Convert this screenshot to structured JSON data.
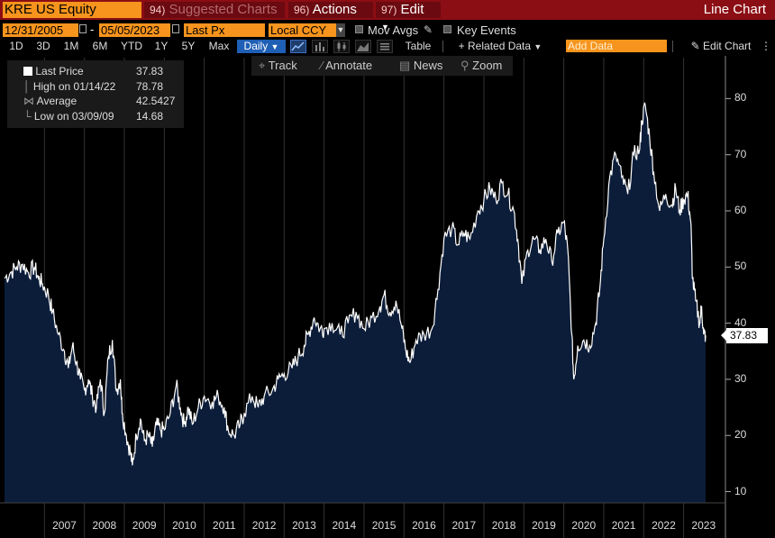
{
  "header": {
    "ticker": "KRE US Equity",
    "suggested_num": "94)",
    "suggested_label": "Suggested Charts",
    "actions_num": "96)",
    "actions_label": "Actions",
    "edit_num": "97)",
    "edit_label": "Edit",
    "chart_title": "Line Chart"
  },
  "controls": {
    "start_date": "12/31/2005",
    "end_date": "05/05/2023",
    "field": "Last Px",
    "currency": "Local CCY",
    "mov_avgs": "Mov Avgs",
    "key_events": "Key Events"
  },
  "ranges": [
    "1D",
    "3D",
    "1M",
    "6M",
    "YTD",
    "1Y",
    "5Y",
    "Max"
  ],
  "frequency": "Daily",
  "toolbar": {
    "table": "Table",
    "related_data": "+ Related Data",
    "add_data_placeholder": "Add Data",
    "edit_chart": "Edit Chart",
    "track": "Track",
    "annotate": "Annotate",
    "news": "News",
    "zoom": "Zoom"
  },
  "legend": {
    "last_label": "Last Price",
    "last_value": "37.83",
    "high_label": "High on 01/14/22",
    "high_value": "78.78",
    "avg_label": "Average",
    "avg_value": "42.5427",
    "low_label": "Low on 03/09/09",
    "low_value": "14.68"
  },
  "colors": {
    "area_fill": "#0c1d3a",
    "line": "#ffffff",
    "accent_orange": "#f7941d",
    "header_red": "#8b0e14"
  },
  "chart_data": {
    "type": "area",
    "x_ticks": [
      "2007",
      "2008",
      "2009",
      "2010",
      "2011",
      "2012",
      "2013",
      "2014",
      "2015",
      "2016",
      "2017",
      "2018",
      "2019",
      "2020",
      "2021",
      "2022",
      "2023"
    ],
    "y_ticks": [
      10,
      20,
      30,
      40,
      50,
      60,
      70,
      80
    ],
    "ylim": [
      8,
      86
    ],
    "xlim": [
      2006.0,
      2023.55
    ],
    "last_value_label": "37.83",
    "series": [
      {
        "name": "Last Price",
        "points": [
          [
            2006.0,
            48
          ],
          [
            2006.15,
            49
          ],
          [
            2006.3,
            50
          ],
          [
            2006.45,
            50.5
          ],
          [
            2006.6,
            49
          ],
          [
            2006.75,
            50
          ],
          [
            2006.85,
            48
          ],
          [
            2006.95,
            47
          ],
          [
            2007.1,
            45
          ],
          [
            2007.2,
            42
          ],
          [
            2007.35,
            38
          ],
          [
            2007.5,
            35
          ],
          [
            2007.6,
            32
          ],
          [
            2007.7,
            36
          ],
          [
            2007.8,
            33
          ],
          [
            2007.9,
            30
          ],
          [
            2008.0,
            28
          ],
          [
            2008.1,
            30
          ],
          [
            2008.2,
            27
          ],
          [
            2008.3,
            25
          ],
          [
            2008.4,
            30
          ],
          [
            2008.5,
            24
          ],
          [
            2008.6,
            34
          ],
          [
            2008.7,
            37
          ],
          [
            2008.8,
            28
          ],
          [
            2008.9,
            30
          ],
          [
            2008.95,
            24
          ],
          [
            2009.05,
            20
          ],
          [
            2009.15,
            17
          ],
          [
            2009.2,
            14.68
          ],
          [
            2009.3,
            20
          ],
          [
            2009.4,
            23
          ],
          [
            2009.5,
            19
          ],
          [
            2009.6,
            20
          ],
          [
            2009.7,
            18
          ],
          [
            2009.8,
            22
          ],
          [
            2009.9,
            21
          ],
          [
            2010.0,
            21
          ],
          [
            2010.15,
            24
          ],
          [
            2010.3,
            29
          ],
          [
            2010.4,
            25
          ],
          [
            2010.5,
            22
          ],
          [
            2010.6,
            25
          ],
          [
            2010.7,
            22
          ],
          [
            2010.85,
            25
          ],
          [
            2011.0,
            27
          ],
          [
            2011.2,
            26
          ],
          [
            2011.35,
            27
          ],
          [
            2011.5,
            25
          ],
          [
            2011.6,
            21
          ],
          [
            2011.75,
            20
          ],
          [
            2011.9,
            22
          ],
          [
            2012.0,
            24
          ],
          [
            2012.2,
            27
          ],
          [
            2012.35,
            25
          ],
          [
            2012.5,
            27
          ],
          [
            2012.7,
            28
          ],
          [
            2012.85,
            30
          ],
          [
            2013.0,
            31
          ],
          [
            2013.2,
            32
          ],
          [
            2013.35,
            34
          ],
          [
            2013.5,
            36
          ],
          [
            2013.6,
            38
          ],
          [
            2013.75,
            41
          ],
          [
            2013.9,
            39
          ],
          [
            2014.0,
            39
          ],
          [
            2014.2,
            40
          ],
          [
            2014.4,
            38
          ],
          [
            2014.6,
            40
          ],
          [
            2014.8,
            42
          ],
          [
            2015.0,
            39
          ],
          [
            2015.2,
            41
          ],
          [
            2015.4,
            43
          ],
          [
            2015.5,
            45
          ],
          [
            2015.65,
            42
          ],
          [
            2015.8,
            44
          ],
          [
            2015.95,
            39
          ],
          [
            2016.05,
            35
          ],
          [
            2016.15,
            33
          ],
          [
            2016.3,
            37
          ],
          [
            2016.5,
            38
          ],
          [
            2016.7,
            39
          ],
          [
            2016.85,
            46
          ],
          [
            2017.0,
            55
          ],
          [
            2017.2,
            57
          ],
          [
            2017.35,
            54
          ],
          [
            2017.5,
            56
          ],
          [
            2017.65,
            55
          ],
          [
            2017.85,
            60
          ],
          [
            2018.0,
            62
          ],
          [
            2018.15,
            64
          ],
          [
            2018.3,
            62
          ],
          [
            2018.45,
            65
          ],
          [
            2018.6,
            63
          ],
          [
            2018.75,
            60
          ],
          [
            2018.85,
            55
          ],
          [
            2018.95,
            47
          ],
          [
            2019.1,
            53
          ],
          [
            2019.25,
            55
          ],
          [
            2019.4,
            53
          ],
          [
            2019.55,
            55
          ],
          [
            2019.7,
            51
          ],
          [
            2019.85,
            56
          ],
          [
            2020.0,
            58
          ],
          [
            2020.1,
            53
          ],
          [
            2020.2,
            38
          ],
          [
            2020.25,
            30
          ],
          [
            2020.35,
            36
          ],
          [
            2020.5,
            37
          ],
          [
            2020.65,
            36
          ],
          [
            2020.8,
            40
          ],
          [
            2020.9,
            46
          ],
          [
            2021.0,
            55
          ],
          [
            2021.15,
            66
          ],
          [
            2021.3,
            70
          ],
          [
            2021.45,
            66
          ],
          [
            2021.6,
            63
          ],
          [
            2021.75,
            70
          ],
          [
            2021.9,
            71
          ],
          [
            2021.95,
            76
          ],
          [
            2022.04,
            78.78
          ],
          [
            2022.15,
            73
          ],
          [
            2022.25,
            67
          ],
          [
            2022.4,
            60
          ],
          [
            2022.55,
            63
          ],
          [
            2022.7,
            61
          ],
          [
            2022.8,
            64
          ],
          [
            2022.9,
            60
          ],
          [
            2023.0,
            62
          ],
          [
            2023.1,
            63
          ],
          [
            2023.18,
            58
          ],
          [
            2023.22,
            48
          ],
          [
            2023.3,
            44
          ],
          [
            2023.4,
            40
          ],
          [
            2023.45,
            43
          ],
          [
            2023.5,
            38
          ],
          [
            2023.55,
            37.83
          ]
        ]
      }
    ]
  }
}
